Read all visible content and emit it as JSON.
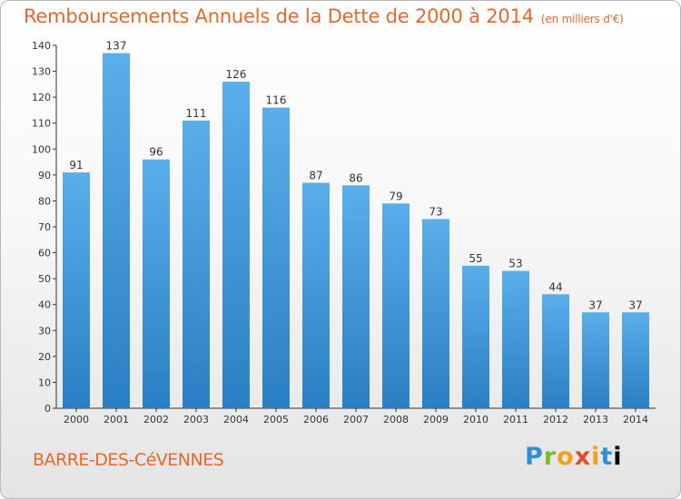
{
  "header": {
    "title": "Remboursements Annuels de la Dette de 2000 à 2014",
    "unit": "(en milliers d'€)"
  },
  "footer": {
    "commune": "BARRE-DES-CéVENNES",
    "logo": [
      "P",
      "r",
      "o",
      "x",
      "i",
      "t",
      "i"
    ]
  },
  "colors": {
    "accent": "#e06a2c",
    "bar_top": "#5aaeea",
    "bar_bottom": "#2a7fc4"
  },
  "chart_data": {
    "type": "bar",
    "title": "Remboursements Annuels de la Dette de 2000 à 2014",
    "subtitle": "(en milliers d'€)",
    "xlabel": "",
    "ylabel": "",
    "categories": [
      "2000",
      "2001",
      "2002",
      "2003",
      "2004",
      "2005",
      "2006",
      "2007",
      "2008",
      "2009",
      "2010",
      "2011",
      "2012",
      "2013",
      "2014"
    ],
    "values": [
      91,
      137,
      96,
      111,
      126,
      116,
      87,
      86,
      79,
      73,
      55,
      53,
      44,
      37,
      37
    ],
    "ylim": [
      0,
      140
    ],
    "yticks": [
      0,
      10,
      20,
      30,
      40,
      50,
      60,
      70,
      80,
      90,
      100,
      110,
      120,
      130,
      140
    ],
    "grid": false,
    "legend": "none"
  }
}
